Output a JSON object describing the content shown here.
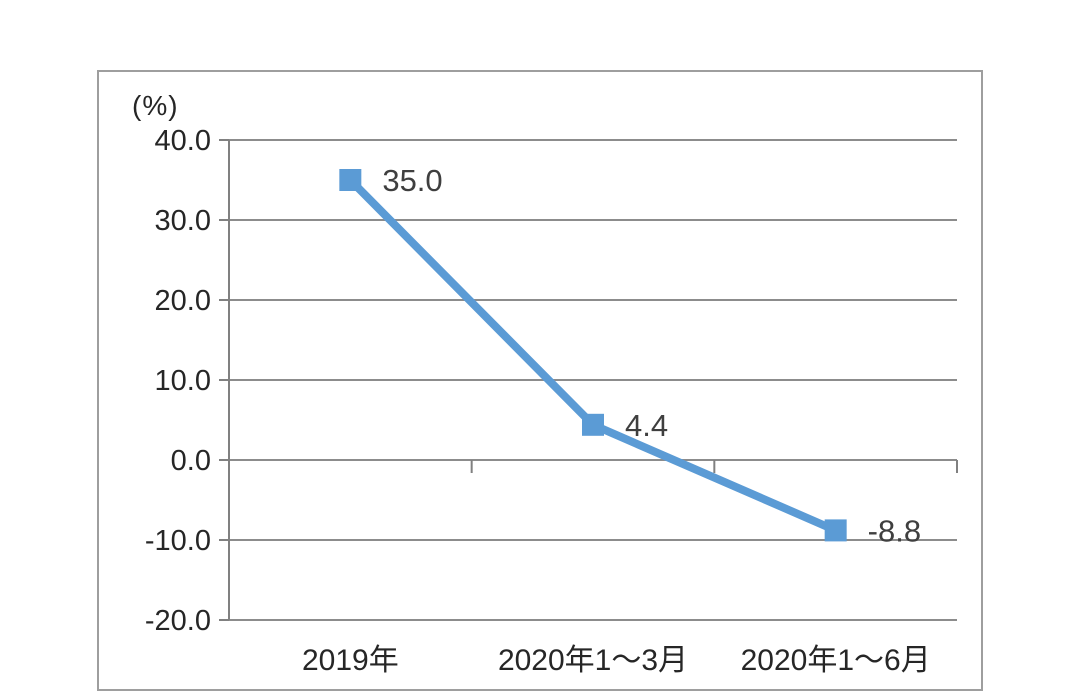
{
  "chart_data": {
    "type": "line",
    "title": "",
    "xlabel": "",
    "ylabel": "(%)",
    "categories": [
      "2019年",
      "2020年1～3月",
      "2020年1～6月"
    ],
    "series": [
      {
        "name": "",
        "values": [
          35.0,
          4.4,
          -8.8
        ]
      }
    ],
    "data_labels": [
      "35.0",
      "4.4",
      "-8.8"
    ],
    "y_tick_labels": [
      "40.0",
      "30.0",
      "20.0",
      "10.0",
      "0.0",
      "-10.0",
      "-20.0"
    ],
    "y_tick_values": [
      40,
      30,
      20,
      10,
      0,
      -10,
      -20
    ],
    "ylim": [
      -20,
      40
    ],
    "grid": true,
    "legend": "none",
    "marker": "square",
    "colors": {
      "line": "#5b9bd5",
      "marker": "#5b9bd5",
      "gridline": "#8c8c8c",
      "axis": "#808080",
      "tick_text": "#262626",
      "data_label_text": "#3f3f3f",
      "frame_border": "#9e9e9e",
      "background": "#ffffff"
    }
  }
}
